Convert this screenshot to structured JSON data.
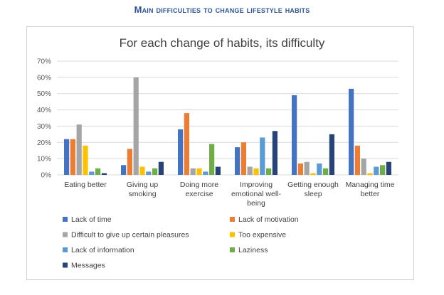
{
  "page_title": "Main difficulties to change lifestyle habits",
  "chart_data": {
    "type": "bar",
    "title": "For each change of habits, its difficulty",
    "xlabel": "",
    "ylabel": "",
    "ylim": [
      0,
      70
    ],
    "yticks": [
      "0%",
      "10%",
      "20%",
      "30%",
      "40%",
      "50%",
      "60%",
      "70%"
    ],
    "grid": true,
    "legend_position": "bottom",
    "categories": [
      [
        "Eating better"
      ],
      [
        "Giving up",
        "smoking"
      ],
      [
        "Doing more",
        "exercise"
      ],
      [
        "Improving",
        "emotional well-",
        "being"
      ],
      [
        "Getting enough",
        "sleep"
      ],
      [
        "Managing time",
        "better"
      ]
    ],
    "series": [
      {
        "name": "Lack of time",
        "color": "#4472C4",
        "values": [
          22,
          6,
          28,
          17,
          49,
          53
        ]
      },
      {
        "name": "Lack of motivation",
        "color": "#ED7D31",
        "values": [
          22,
          16,
          38,
          20,
          7,
          18
        ]
      },
      {
        "name": "Difficult to give up certain pleasures",
        "color": "#A5A5A5",
        "values": [
          31,
          60,
          4,
          5,
          8,
          10
        ]
      },
      {
        "name": "Too expensive",
        "color": "#FFC000",
        "values": [
          18,
          5,
          4,
          4,
          1,
          1
        ]
      },
      {
        "name": "Lack of information",
        "color": "#5B9BD5",
        "values": [
          2,
          2,
          2,
          23,
          7,
          5
        ]
      },
      {
        "name": "Laziness",
        "color": "#70AD47",
        "values": [
          4,
          4,
          19,
          4,
          4,
          6
        ]
      },
      {
        "name": "Messages",
        "color": "#264478",
        "values": [
          1,
          8,
          5,
          27,
          25,
          8
        ]
      }
    ]
  }
}
